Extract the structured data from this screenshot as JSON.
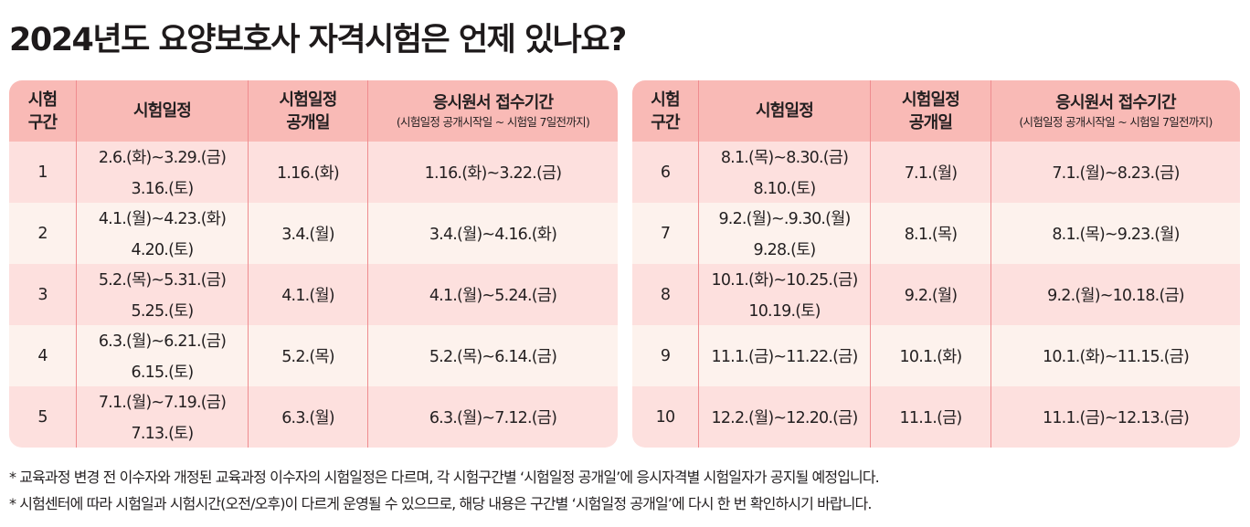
{
  "title": "2024년도 요양보호사 자격시험은 언제 있나요?",
  "headers": {
    "section_line1": "시험",
    "section_line2": "구간",
    "schedule": "시험일정",
    "announce_line1": "시험일정",
    "announce_line2": "공개일",
    "apply_main": "응시원서 접수기간",
    "apply_sub": "(시험일정 공개시작일 ~ 시험일 7일전까지)"
  },
  "colors": {
    "header_bg": "#f9bab6",
    "row_odd_bg": "#fde0de",
    "row_even_bg": "#fdf2ed",
    "exam_date_bg_odd": "#f8b6c4",
    "exam_date_bg_even": "#f8c5d0",
    "divider": "#ef8c8f"
  },
  "left_table": {
    "rows": [
      {
        "section": "1",
        "schedule_range": "2.6.(화)~3.29.(금)",
        "exam_date": "3.16.(토)",
        "announce": "1.16.(화)",
        "apply": "1.16.(화)~3.22.(금)"
      },
      {
        "section": "2",
        "schedule_range": "4.1.(월)~4.23.(화)",
        "exam_date": "4.20.(토)",
        "announce": "3.4.(월)",
        "apply": "3.4.(월)~4.16.(화)"
      },
      {
        "section": "3",
        "schedule_range": "5.2.(목)~5.31.(금)",
        "exam_date": "5.25.(토)",
        "announce": "4.1.(월)",
        "apply": "4.1.(월)~5.24.(금)"
      },
      {
        "section": "4",
        "schedule_range": "6.3.(월)~6.21.(금)",
        "exam_date": "6.15.(토)",
        "announce": "5.2.(목)",
        "apply": "5.2.(목)~6.14.(금)"
      },
      {
        "section": "5",
        "schedule_range": "7.1.(월)~7.19.(금)",
        "exam_date": "7.13.(토)",
        "announce": "6.3.(월)",
        "apply": "6.3.(월)~7.12.(금)"
      }
    ]
  },
  "right_table": {
    "rows": [
      {
        "section": "6",
        "schedule_range": "8.1.(목)~8.30.(금)",
        "exam_date": "8.10.(토)",
        "announce": "7.1.(월)",
        "apply": "7.1.(월)~8.23.(금)"
      },
      {
        "section": "7",
        "schedule_range": "9.2.(월)~.9.30.(월)",
        "exam_date": "9.28.(토)",
        "announce": "8.1.(목)",
        "apply": "8.1.(목)~9.23.(월)"
      },
      {
        "section": "8",
        "schedule_range": "10.1.(화)~10.25.(금)",
        "exam_date": "10.19.(토)",
        "announce": "9.2.(월)",
        "apply": "9.2.(월)~10.18.(금)"
      },
      {
        "section": "9",
        "schedule_range": "11.1.(금)~11.22.(금)",
        "exam_date": null,
        "announce": "10.1.(화)",
        "apply": "10.1.(화)~11.15.(금)"
      },
      {
        "section": "10",
        "schedule_range": "12.2.(월)~12.20.(금)",
        "exam_date": null,
        "announce": "11.1.(금)",
        "apply": "11.1.(금)~12.13.(금)"
      }
    ]
  },
  "notes": [
    "* 교육과정 변경 전 이수자와 개정된 교육과정 이수자의 시험일정은 다르며, 각 시험구간별 ‘시험일정 공개일’에 응시자격별 시험일자가 공지될 예정입니다.",
    "* 시험센터에 따라 시험일과 시험시간(오전/오후)이 다르게 운영될 수 있으므로, 해당 내용은 구간별 ‘시험일정 공개일’에 다시 한 번 확인하시기 바랍니다."
  ]
}
